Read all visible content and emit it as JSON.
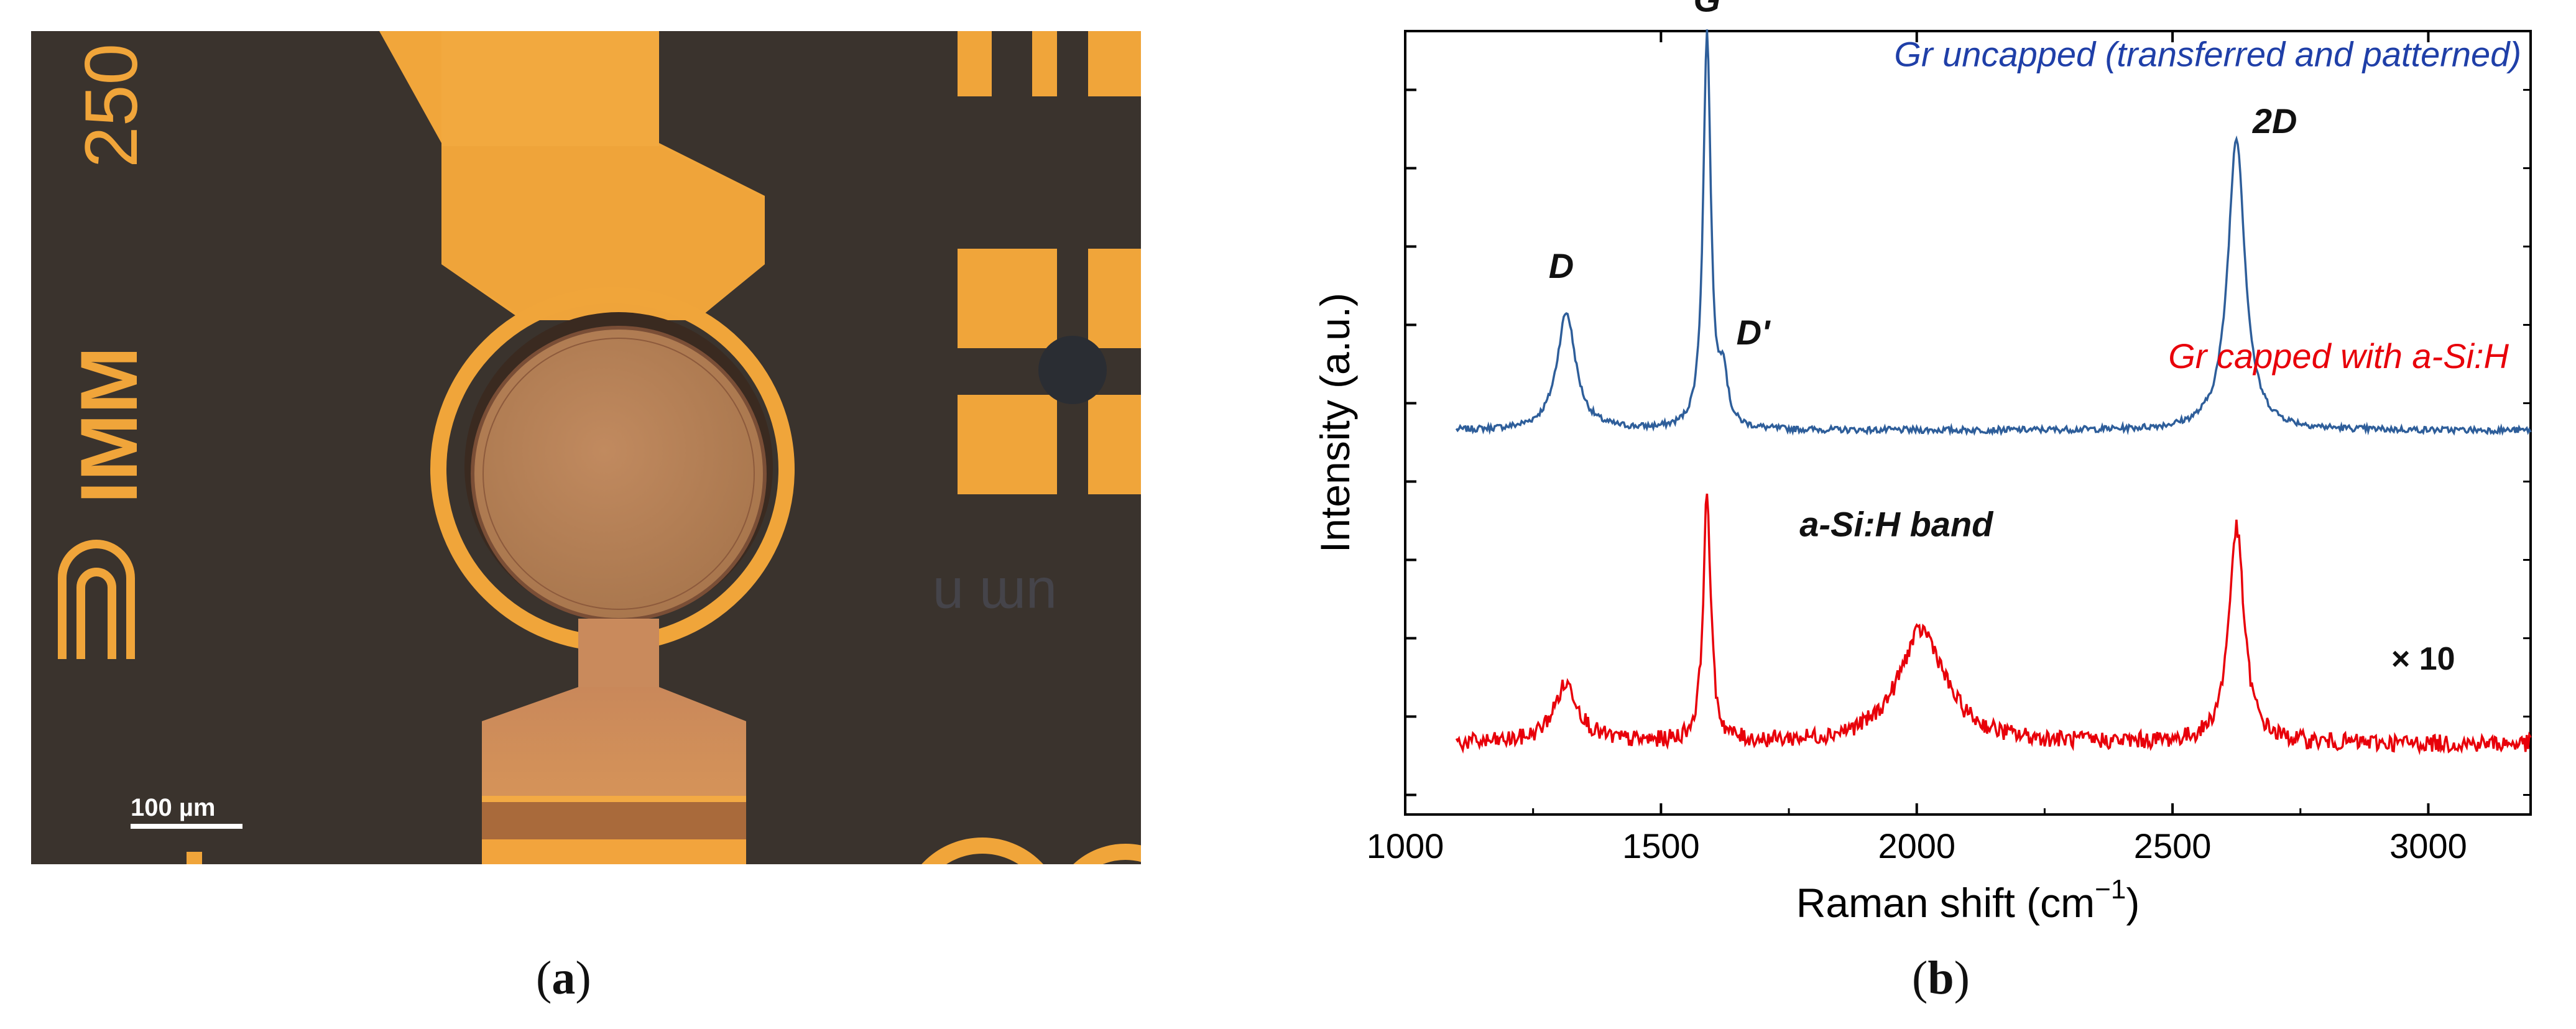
{
  "figure": {
    "panel_a": {
      "caption_open": "(",
      "caption_letter": "a",
      "caption_close": ")",
      "chip_text": "250",
      "logo_text": "IMM",
      "scale_bar_label": "100 µm",
      "colors": {
        "substrate": "#3a332d",
        "metal": "#f0a53a",
        "membrane": "#b88257"
      }
    },
    "panel_b": {
      "caption_open": "(",
      "caption_letter": "b",
      "caption_close": ")"
    }
  },
  "chart_data": {
    "type": "line",
    "xlabel": "Raman shift (cm",
    "xlabel_sup": "−1",
    "xlabel_close": ")",
    "ylabel": "Intensity (a.u.)",
    "xlim": [
      1000,
      3200
    ],
    "ylim": [
      0,
      1
    ],
    "x_ticks": [
      1000,
      1500,
      2000,
      2500,
      3000
    ],
    "x_tick_labels": [
      "1000",
      "1500",
      "2000",
      "2500",
      "3000"
    ],
    "y_ticks": [
      0.025,
      0.125,
      0.225,
      0.325,
      0.425,
      0.525,
      0.625,
      0.725,
      0.825,
      0.925,
      1.0
    ],
    "y_tick_labels_shown": false,
    "series": [
      {
        "name": "Gr uncapped (transferred and patterned)",
        "color": "#2e5e9a",
        "label_color": "#1f3fa8",
        "x_range": [
          1100,
          3200
        ],
        "baseline": 0.49,
        "noise": 0.004,
        "peaks": [
          {
            "label": "D",
            "center": 1315,
            "height": 0.15,
            "width": 22
          },
          {
            "label": "G",
            "center": 1590,
            "height": 0.505,
            "width": 9
          },
          {
            "label": "D'",
            "center": 1622,
            "height": 0.065,
            "width": 9
          },
          {
            "label": "2D",
            "center": 2625,
            "height": 0.375,
            "width": 20
          }
        ]
      },
      {
        "name": "Gr capped with a-Si:H",
        "color": "#e8000a",
        "label_color": "#e8000a",
        "multiplier_label": "× 10",
        "x_range": [
          1100,
          3200
        ],
        "baseline": 0.09,
        "noise": 0.011,
        "peaks": [
          {
            "label": "D",
            "center": 1315,
            "height": 0.075,
            "width": 30
          },
          {
            "label": "G",
            "center": 1590,
            "height": 0.315,
            "width": 9
          },
          {
            "label": "a-Si:H band",
            "center": 2010,
            "height": 0.145,
            "width": 55
          },
          {
            "label": "2D",
            "center": 2625,
            "height": 0.275,
            "width": 18
          }
        ]
      }
    ],
    "peak_annotations": [
      "G",
      "D",
      "D'",
      "2D",
      "a-Si:H band",
      "× 10"
    ]
  }
}
